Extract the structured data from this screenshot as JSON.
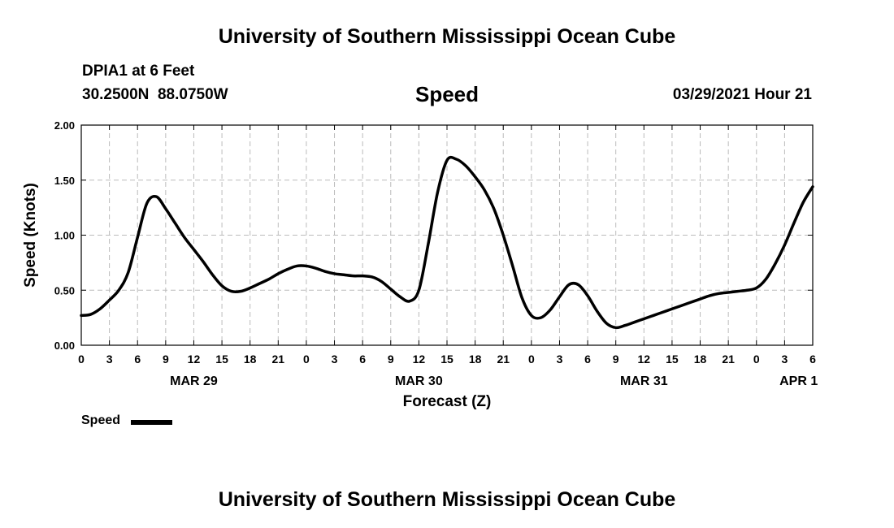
{
  "header": {
    "title": "University of Southern Mississippi Ocean Cube",
    "station": "DPIA1 at 6 Feet",
    "coordinates": "30.2500N  88.0750W",
    "chart_title": "Speed",
    "datetime": "03/29/2021 Hour 21"
  },
  "footer": {
    "title": "University of Southern Mississippi Ocean Cube"
  },
  "legend": {
    "label": "Speed",
    "color": "#000000"
  },
  "chart_data": {
    "type": "line",
    "title": "Speed",
    "xlabel": "Forecast (Z)",
    "ylabel": "Speed (Knots)",
    "ylim": [
      0,
      2.0
    ],
    "yticks": [
      "0.00",
      "0.50",
      "1.00",
      "1.50",
      "2.00"
    ],
    "xlim_hours": [
      0,
      78
    ],
    "xtick_step_hours": 3,
    "xtick_labels": [
      "0",
      "3",
      "6",
      "9",
      "12",
      "15",
      "18",
      "21",
      "0",
      "3",
      "6",
      "9",
      "12",
      "15",
      "18",
      "21",
      "0",
      "3",
      "6",
      "9",
      "12",
      "15",
      "18",
      "21",
      "0",
      "3",
      "6"
    ],
    "day_labels": [
      {
        "label": "MAR 29",
        "hour": 12
      },
      {
        "label": "MAR 30",
        "hour": 36
      },
      {
        "label": "MAR 31",
        "hour": 60
      },
      {
        "label": "APR 1",
        "hour": 76.5
      }
    ],
    "grid": true,
    "legend_position": "bottom-left",
    "series": [
      {
        "name": "Speed",
        "x": [
          0,
          1,
          2,
          3,
          4,
          5,
          6,
          7,
          8,
          9,
          10,
          11,
          12,
          13,
          14,
          15,
          16,
          17,
          18,
          19,
          20,
          21,
          22,
          23,
          24,
          25,
          26,
          27,
          28,
          29,
          30,
          31,
          32,
          33,
          34,
          35,
          36,
          37,
          38,
          39,
          40,
          41,
          42,
          43,
          44,
          45,
          46,
          47,
          48,
          49,
          50,
          51,
          52,
          53,
          54,
          55,
          56,
          57,
          58,
          59,
          60,
          61,
          62,
          63,
          64,
          65,
          66,
          67,
          68,
          69,
          70,
          71,
          72,
          73,
          74,
          75,
          76,
          77,
          78
        ],
        "values": [
          0.27,
          0.28,
          0.33,
          0.41,
          0.5,
          0.66,
          0.98,
          1.29,
          1.35,
          1.24,
          1.11,
          0.98,
          0.87,
          0.76,
          0.64,
          0.54,
          0.49,
          0.49,
          0.52,
          0.56,
          0.6,
          0.65,
          0.69,
          0.72,
          0.72,
          0.7,
          0.67,
          0.65,
          0.64,
          0.63,
          0.63,
          0.62,
          0.58,
          0.51,
          0.44,
          0.4,
          0.5,
          0.92,
          1.39,
          1.68,
          1.69,
          1.63,
          1.53,
          1.41,
          1.24,
          1.0,
          0.72,
          0.43,
          0.27,
          0.25,
          0.32,
          0.44,
          0.55,
          0.55,
          0.45,
          0.31,
          0.2,
          0.16,
          0.18,
          0.21,
          0.24,
          0.27,
          0.3,
          0.33,
          0.36,
          0.39,
          0.42,
          0.45,
          0.47,
          0.48,
          0.49,
          0.5,
          0.52,
          0.6,
          0.74,
          0.91,
          1.11,
          1.3,
          1.44
        ]
      }
    ]
  }
}
